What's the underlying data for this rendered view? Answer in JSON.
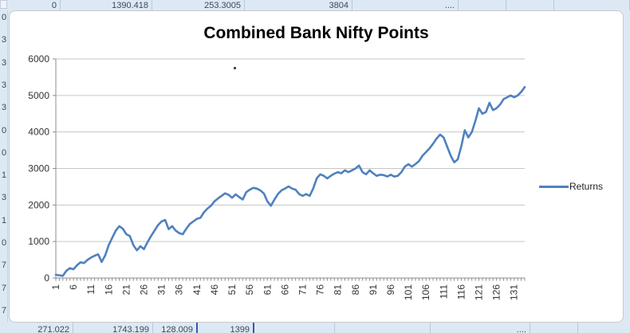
{
  "sheet": {
    "top_row_cells": [
      "0",
      "1390.418",
      "253.3005",
      "3804",
      "....",
      "",
      "",
      ""
    ],
    "bottom_row_cells": [
      "271.022",
      "1743.199",
      "128.009",
      "1399",
      "",
      "",
      "....",
      ""
    ],
    "left_column_fragments": [
      "0",
      "3",
      "3",
      "3",
      "3",
      "0",
      "0",
      "1",
      "3",
      "1",
      "0",
      "7",
      "7",
      "7"
    ]
  },
  "colors": {
    "series_line": "#4F81BD",
    "gridline": "#C6C6C6",
    "axis": "#8C8C8C",
    "tick_label": "#333333",
    "chart_background": "#FFFFFF",
    "sheet_background": "#DCE9F5"
  },
  "legend": {
    "label": "Returns"
  },
  "chart_data": {
    "type": "line",
    "title": "Combined Bank Nifty Points",
    "xlabel": "",
    "ylabel": "",
    "ylim": [
      0,
      6000
    ],
    "y_ticks": [
      0,
      1000,
      2000,
      3000,
      4000,
      5000,
      6000
    ],
    "x_tick_labels": [
      "1",
      "6",
      "11",
      "16",
      "21",
      "26",
      "31",
      "36",
      "41",
      "46",
      "51",
      "56",
      "61",
      "66",
      "71",
      "76",
      "81",
      "86",
      "91",
      "96",
      "101",
      "106",
      "111",
      "116",
      "121",
      "126",
      "131"
    ],
    "x_tick_step": 5,
    "n_points": 134,
    "grid": "horizontal",
    "legend_position": "right",
    "series": [
      {
        "name": "Returns",
        "color": "#4F81BD",
        "values": [
          90,
          75,
          60,
          200,
          270,
          240,
          350,
          430,
          410,
          500,
          560,
          610,
          650,
          440,
          620,
          900,
          1100,
          1300,
          1420,
          1350,
          1200,
          1150,
          900,
          760,
          870,
          790,
          980,
          1150,
          1300,
          1450,
          1550,
          1590,
          1340,
          1420,
          1300,
          1230,
          1200,
          1350,
          1480,
          1550,
          1620,
          1650,
          1800,
          1900,
          1980,
          2100,
          2180,
          2250,
          2320,
          2280,
          2200,
          2290,
          2220,
          2150,
          2350,
          2420,
          2470,
          2450,
          2400,
          2320,
          2100,
          1980,
          2150,
          2300,
          2400,
          2450,
          2510,
          2450,
          2420,
          2300,
          2250,
          2300,
          2250,
          2450,
          2730,
          2840,
          2800,
          2730,
          2800,
          2860,
          2900,
          2870,
          2950,
          2900,
          2950,
          3000,
          3080,
          2900,
          2840,
          2950,
          2870,
          2800,
          2830,
          2820,
          2780,
          2830,
          2780,
          2800,
          2900,
          3050,
          3120,
          3050,
          3120,
          3200,
          3350,
          3450,
          3550,
          3680,
          3820,
          3930,
          3850,
          3600,
          3350,
          3170,
          3250,
          3600,
          4050,
          3850,
          4000,
          4300,
          4650,
          4500,
          4550,
          4800,
          4600,
          4650,
          4750,
          4900,
          4950,
          5000,
          4950,
          5000,
          5100,
          5230
        ]
      }
    ]
  }
}
